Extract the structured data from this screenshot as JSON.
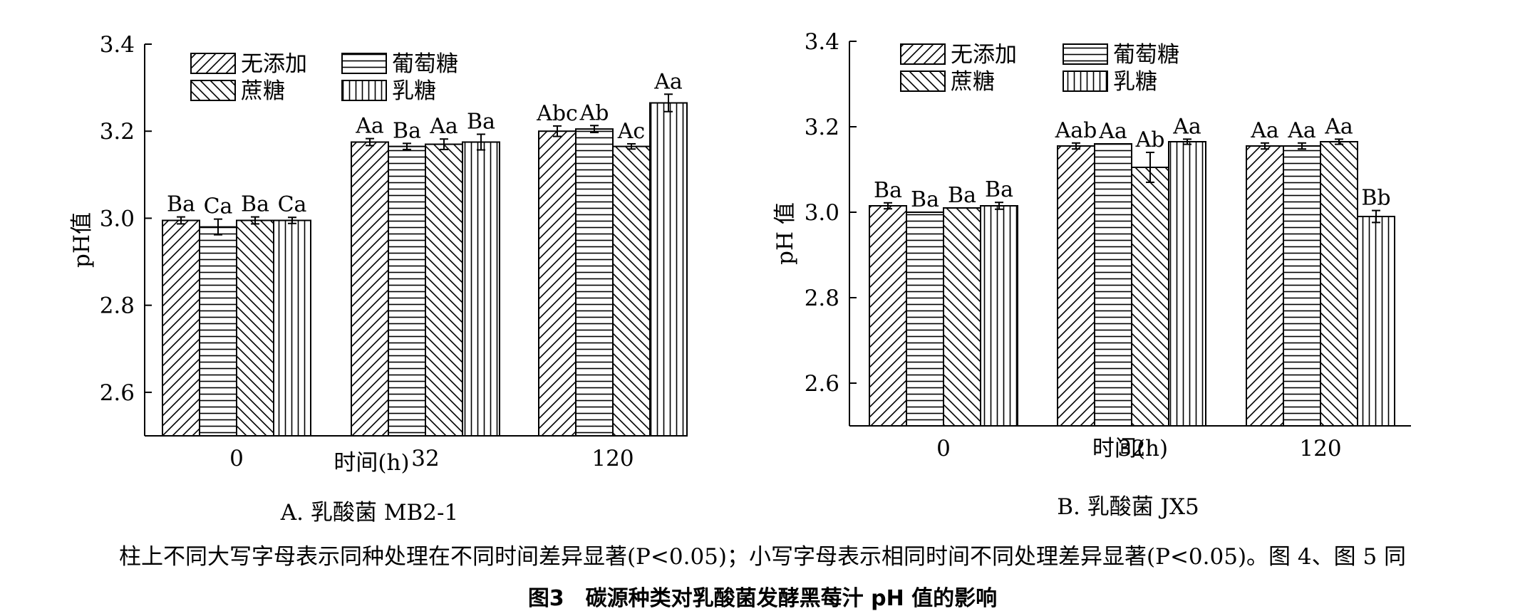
{
  "figure": {
    "note": "柱上不同大写字母表示同种处理在不同时间差异显著(P<0.05)；小写字母表示相同时间不同处理差异显著(P<0.05)。图 4、图 5 同",
    "title": "图3　碳源种类对乳酸菌发酵黑莓汁 pH 值的影响"
  },
  "chart_data": [
    {
      "type": "bar",
      "panel_label": "A. 乳酸菌 MB2-1",
      "xlabel": "时间(h)",
      "ylabel": "pH值",
      "ylim": [
        2.5,
        3.4
      ],
      "yticks": [
        "2.6",
        "2.8",
        "3.0",
        "3.2",
        "3.4"
      ],
      "categories": [
        "0",
        "32",
        "120"
      ],
      "legend_position": "top-left",
      "series": [
        {
          "name": "无添加",
          "pattern": "diag-right",
          "values": [
            2.995,
            3.175,
            3.2
          ],
          "errors": [
            0.008,
            0.008,
            0.012
          ],
          "labels": [
            "Ba",
            "Aa",
            "Abc"
          ]
        },
        {
          "name": "葡萄糖",
          "pattern": "horizontal",
          "values": [
            2.98,
            3.165,
            3.205
          ],
          "errors": [
            0.018,
            0.007,
            0.008
          ],
          "labels": [
            "Ca",
            "Ba",
            "Ab"
          ]
        },
        {
          "name": "蔗糖",
          "pattern": "diag-left",
          "values": [
            2.995,
            3.17,
            3.165
          ],
          "errors": [
            0.008,
            0.012,
            0.006
          ],
          "labels": [
            "Ba",
            "Aa",
            "Ac"
          ]
        },
        {
          "name": "乳糖",
          "pattern": "vertical",
          "values": [
            2.995,
            3.175,
            3.265
          ],
          "errors": [
            0.007,
            0.018,
            0.02
          ],
          "labels": [
            "Ca",
            "Ba",
            "Aa"
          ]
        }
      ]
    },
    {
      "type": "bar",
      "panel_label": "B. 乳酸菌 JX5",
      "xlabel": "时间(h)",
      "ylabel": "pH 值",
      "ylim": [
        2.5,
        3.4
      ],
      "yticks": [
        "2.6",
        "2.8",
        "3.0",
        "3.2",
        "3.4"
      ],
      "categories": [
        "0",
        "32",
        "120"
      ],
      "legend_position": "top-left",
      "series": [
        {
          "name": "无添加",
          "pattern": "diag-right",
          "values": [
            3.015,
            3.155,
            3.155
          ],
          "errors": [
            0.007,
            0.007,
            0.007
          ],
          "labels": [
            "Ba",
            "Aab",
            "Aa"
          ]
        },
        {
          "name": "葡萄糖",
          "pattern": "horizontal",
          "values": [
            3.0,
            3.16,
            3.155
          ],
          "errors": [
            0.0,
            0.0,
            0.007
          ],
          "labels": [
            "Ba",
            "Aa",
            "Aa"
          ]
        },
        {
          "name": "蔗糖",
          "pattern": "diag-left",
          "values": [
            3.01,
            3.105,
            3.165
          ],
          "errors": [
            0.0,
            0.035,
            0.006
          ],
          "labels": [
            "Ba",
            "Ab",
            "Aa"
          ]
        },
        {
          "name": "乳糖",
          "pattern": "vertical",
          "values": [
            3.015,
            3.165,
            2.99
          ],
          "errors": [
            0.008,
            0.006,
            0.014
          ],
          "labels": [
            "Ba",
            "Aa",
            "Bb"
          ]
        }
      ]
    }
  ]
}
